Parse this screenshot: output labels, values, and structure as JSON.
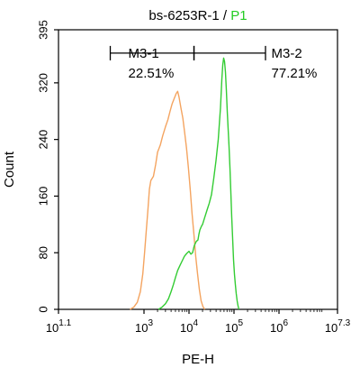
{
  "chart_data": {
    "type": "histogram",
    "title_main": "bs-6253R-1 / ",
    "title_highlight": "P1",
    "title_highlight_color": "#22cc22",
    "xlabel": "PE-H",
    "ylabel": "Count",
    "x_scale": "log",
    "xlim": [
      12.59,
      19953000
    ],
    "ylim": [
      0,
      395
    ],
    "x_ticks": [
      {
        "value": 12.59,
        "base": "10",
        "exp": "1.1"
      },
      {
        "value": 1000,
        "base": "10",
        "exp": "3"
      },
      {
        "value": 10000,
        "base": "10",
        "exp": "4"
      },
      {
        "value": 100000,
        "base": "10",
        "exp": "5"
      },
      {
        "value": 1000000,
        "base": "10",
        "exp": "6"
      },
      {
        "value": 19953000,
        "base": "10",
        "exp": "7.3"
      }
    ],
    "y_ticks": [
      0,
      80,
      160,
      240,
      320,
      395
    ],
    "series": [
      {
        "color": "#f4a460",
        "points": [
          [
            490,
            0
          ],
          [
            590,
            3
          ],
          [
            710,
            10
          ],
          [
            830,
            25
          ],
          [
            940,
            50
          ],
          [
            1030,
            80
          ],
          [
            1120,
            110
          ],
          [
            1220,
            140
          ],
          [
            1320,
            170
          ],
          [
            1420,
            182
          ],
          [
            1620,
            188
          ],
          [
            1820,
            205
          ],
          [
            2000,
            222
          ],
          [
            2300,
            232
          ],
          [
            2600,
            245
          ],
          [
            3000,
            258
          ],
          [
            3400,
            268
          ],
          [
            3800,
            280
          ],
          [
            4200,
            290
          ],
          [
            4700,
            298
          ],
          [
            5200,
            305
          ],
          [
            5600,
            308
          ],
          [
            6000,
            300
          ],
          [
            6600,
            285
          ],
          [
            7300,
            270
          ],
          [
            8000,
            250
          ],
          [
            8800,
            228
          ],
          [
            9700,
            200
          ],
          [
            10700,
            168
          ],
          [
            11700,
            135
          ],
          [
            12900,
            105
          ],
          [
            14100,
            75
          ],
          [
            15500,
            50
          ],
          [
            17000,
            28
          ],
          [
            18600,
            12
          ],
          [
            20400,
            4
          ],
          [
            22400,
            0
          ]
        ]
      },
      {
        "color": "#33cc33",
        "points": [
          [
            2100,
            0
          ],
          [
            2500,
            3
          ],
          [
            3000,
            8
          ],
          [
            3500,
            15
          ],
          [
            4000,
            25
          ],
          [
            4500,
            35
          ],
          [
            5000,
            45
          ],
          [
            5600,
            55
          ],
          [
            6300,
            62
          ],
          [
            7000,
            68
          ],
          [
            7900,
            75
          ],
          [
            8900,
            79
          ],
          [
            10000,
            82
          ],
          [
            11000,
            78
          ],
          [
            12000,
            80
          ],
          [
            13100,
            90
          ],
          [
            14500,
            96
          ],
          [
            15800,
            98
          ],
          [
            16600,
            106
          ],
          [
            17400,
            112
          ],
          [
            18200,
            115
          ],
          [
            19100,
            118
          ],
          [
            20000,
            120
          ],
          [
            22400,
            130
          ],
          [
            25100,
            140
          ],
          [
            28200,
            150
          ],
          [
            31600,
            162
          ],
          [
            35500,
            185
          ],
          [
            39800,
            210
          ],
          [
            44700,
            240
          ],
          [
            50100,
            285
          ],
          [
            53700,
            325
          ],
          [
            56200,
            345
          ],
          [
            58900,
            355
          ],
          [
            61700,
            350
          ],
          [
            64600,
            335
          ],
          [
            67600,
            310
          ],
          [
            70800,
            280
          ],
          [
            74100,
            255
          ],
          [
            77600,
            230
          ],
          [
            81300,
            200
          ],
          [
            85100,
            165
          ],
          [
            89100,
            130
          ],
          [
            93300,
            100
          ],
          [
            97700,
            70
          ],
          [
            102300,
            50
          ],
          [
            107200,
            35
          ],
          [
            112200,
            22
          ],
          [
            117500,
            12
          ],
          [
            123000,
            5
          ],
          [
            128800,
            0
          ]
        ]
      }
    ],
    "gates": [
      {
        "name": "M3-1",
        "percent": "22.51%",
        "x_start": 178,
        "x_end": 12900,
        "y": 362
      },
      {
        "name": "M3-2",
        "percent": "77.21%",
        "x_start": 12900,
        "x_end": 501000,
        "y": 362
      }
    ]
  }
}
